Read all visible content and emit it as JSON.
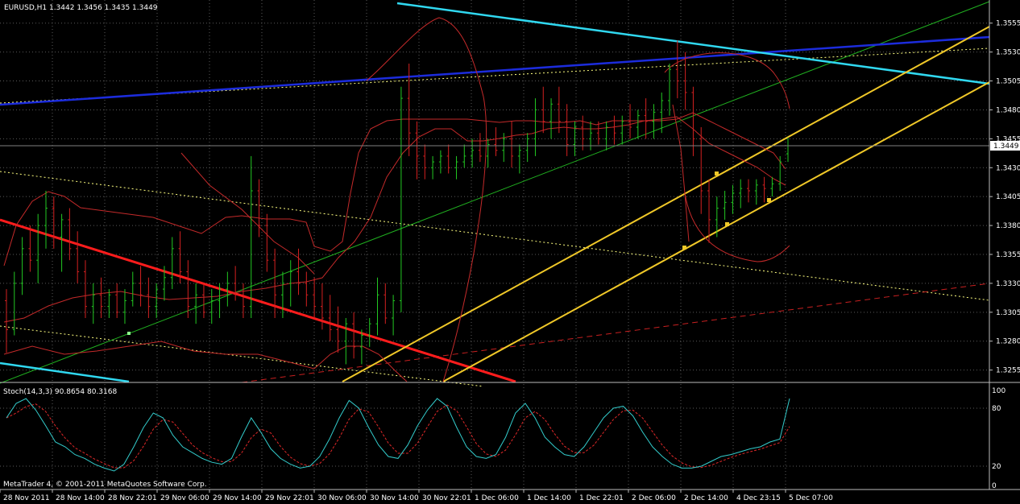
{
  "window": {
    "header": "EURUSD,H1  1.3442 1.3456 1.3435 1.3449",
    "copyright": "MetaTrader 4, © 2001-2011 MetaQuotes Software Corp."
  },
  "price_axis": {
    "labels": [
      "1.3555",
      "1.3530",
      "1.3505",
      "1.3480",
      "1.3455",
      "1.3430",
      "1.3405",
      "1.3380",
      "1.3355",
      "1.3330",
      "1.3305",
      "1.3280",
      "1.3255"
    ],
    "current_price": "1.3449"
  },
  "time_axis": {
    "labels": [
      "28 Nov 2011",
      "28 Nov 14:00",
      "28 Nov 22:01",
      "29 Nov 06:00",
      "29 Nov 14:00",
      "29 Nov 22:01",
      "30 Nov 06:00",
      "30 Nov 14:00",
      "30 Nov 22:01",
      "1 Dec 06:00",
      "1 Dec 14:00",
      "1 Dec 22:01",
      "2 Dec 06:00",
      "2 Dec 14:00",
      "4 Dec 23:15",
      "5 Dec 07:00"
    ]
  },
  "indicator": {
    "header": "Stoch(14,3,3) 90.8654 80.3168",
    "levels": [
      "100",
      "80",
      "20",
      "0"
    ]
  },
  "colors": {
    "background": "#000000",
    "bull_candle": "#22c822",
    "bear_candle": "#d42020",
    "grid": "#5a5a5a",
    "bands": "#c42a2a",
    "stoch_main": "#33cccc",
    "stoch_signal": "#e02828",
    "channel": "#f0c828",
    "trend_blue": "#1c2cdc",
    "trend_cyan": "#30d8f0",
    "trend_red": "#ff1c1c",
    "trend_green": "#20b020"
  },
  "chart_data": {
    "type": "candlestick",
    "symbol": "EURUSD",
    "timeframe": "H1",
    "ylim": [
      1.3245,
      1.3575
    ],
    "candles": [
      [
        1.3315,
        1.3325,
        1.327,
        1.329
      ],
      [
        1.329,
        1.334,
        1.3285,
        1.333
      ],
      [
        1.333,
        1.337,
        1.332,
        1.336
      ],
      [
        1.336,
        1.338,
        1.334,
        1.335
      ],
      [
        1.335,
        1.339,
        1.333,
        1.338
      ],
      [
        1.338,
        1.341,
        1.336,
        1.3395
      ],
      [
        1.3395,
        1.3405,
        1.336,
        1.337
      ],
      [
        1.337,
        1.339,
        1.334,
        1.3385
      ],
      [
        1.3385,
        1.3395,
        1.335,
        1.336
      ],
      [
        1.336,
        1.3375,
        1.333,
        1.334
      ],
      [
        1.334,
        1.335,
        1.33,
        1.331
      ],
      [
        1.331,
        1.333,
        1.3295,
        1.332
      ],
      [
        1.332,
        1.3335,
        1.33,
        1.331
      ],
      [
        1.331,
        1.3325,
        1.33,
        1.332
      ],
      [
        1.332,
        1.333,
        1.33,
        1.3305
      ],
      [
        1.3305,
        1.3325,
        1.3295,
        1.3315
      ],
      [
        1.3315,
        1.334,
        1.331,
        1.333
      ],
      [
        1.333,
        1.3345,
        1.331,
        1.332
      ],
      [
        1.332,
        1.3335,
        1.33,
        1.331
      ],
      [
        1.331,
        1.333,
        1.33,
        1.3325
      ],
      [
        1.3325,
        1.3345,
        1.3315,
        1.3335
      ],
      [
        1.3335,
        1.337,
        1.3325,
        1.336
      ],
      [
        1.336,
        1.3375,
        1.333,
        1.334
      ],
      [
        1.334,
        1.335,
        1.33,
        1.331
      ],
      [
        1.331,
        1.333,
        1.3295,
        1.332
      ],
      [
        1.332,
        1.333,
        1.33,
        1.3305
      ],
      [
        1.3305,
        1.3325,
        1.3295,
        1.3315
      ],
      [
        1.3315,
        1.333,
        1.33,
        1.3325
      ],
      [
        1.3325,
        1.334,
        1.331,
        1.333
      ],
      [
        1.333,
        1.3345,
        1.3315,
        1.332
      ],
      [
        1.332,
        1.333,
        1.33,
        1.331
      ],
      [
        1.331,
        1.344,
        1.33,
        1.341
      ],
      [
        1.341,
        1.342,
        1.337,
        1.338
      ],
      [
        1.338,
        1.339,
        1.334,
        1.335
      ],
      [
        1.335,
        1.336,
        1.33,
        1.332
      ],
      [
        1.332,
        1.334,
        1.33,
        1.333
      ],
      [
        1.333,
        1.335,
        1.331,
        1.334
      ],
      [
        1.334,
        1.336,
        1.332,
        1.333
      ],
      [
        1.333,
        1.334,
        1.331,
        1.332
      ],
      [
        1.332,
        1.3335,
        1.33,
        1.331
      ],
      [
        1.331,
        1.333,
        1.329,
        1.33
      ],
      [
        1.33,
        1.332,
        1.328,
        1.329
      ],
      [
        1.329,
        1.331,
        1.327,
        1.328
      ],
      [
        1.328,
        1.33,
        1.326,
        1.3295
      ],
      [
        1.3295,
        1.3305,
        1.3265,
        1.3275
      ],
      [
        1.3275,
        1.329,
        1.326,
        1.3285
      ],
      [
        1.3285,
        1.33,
        1.3275,
        1.3295
      ],
      [
        1.3295,
        1.3335,
        1.3285,
        1.332
      ],
      [
        1.332,
        1.333,
        1.3295,
        1.33
      ],
      [
        1.33,
        1.332,
        1.3285,
        1.3315
      ],
      [
        1.3315,
        1.35,
        1.3305,
        1.349
      ],
      [
        1.349,
        1.352,
        1.344,
        1.346
      ],
      [
        1.346,
        1.347,
        1.342,
        1.344
      ],
      [
        1.344,
        1.345,
        1.342,
        1.343
      ],
      [
        1.343,
        1.344,
        1.342,
        1.3435
      ],
      [
        1.3435,
        1.3445,
        1.3425,
        1.344
      ],
      [
        1.344,
        1.345,
        1.3425,
        1.343
      ],
      [
        1.343,
        1.344,
        1.342,
        1.3435
      ],
      [
        1.3435,
        1.345,
        1.343,
        1.344
      ],
      [
        1.344,
        1.3455,
        1.343,
        1.3445
      ],
      [
        1.3445,
        1.346,
        1.3435,
        1.344
      ],
      [
        1.344,
        1.3455,
        1.343,
        1.345
      ],
      [
        1.345,
        1.3465,
        1.344,
        1.3445
      ],
      [
        1.3445,
        1.346,
        1.3435,
        1.3455
      ],
      [
        1.3455,
        1.347,
        1.343,
        1.344
      ],
      [
        1.344,
        1.345,
        1.3425,
        1.3445
      ],
      [
        1.3445,
        1.346,
        1.3435,
        1.3455
      ],
      [
        1.3455,
        1.349,
        1.344,
        1.348
      ],
      [
        1.348,
        1.35,
        1.346,
        1.347
      ],
      [
        1.347,
        1.349,
        1.3455,
        1.3485
      ],
      [
        1.3485,
        1.35,
        1.346,
        1.347
      ],
      [
        1.347,
        1.3485,
        1.344,
        1.345
      ],
      [
        1.345,
        1.347,
        1.344,
        1.3465
      ],
      [
        1.3465,
        1.3475,
        1.3445,
        1.3455
      ],
      [
        1.3455,
        1.347,
        1.3445,
        1.346
      ],
      [
        1.346,
        1.347,
        1.345,
        1.3455
      ],
      [
        1.3455,
        1.347,
        1.3445,
        1.3465
      ],
      [
        1.3465,
        1.3475,
        1.345,
        1.346
      ],
      [
        1.346,
        1.3475,
        1.345,
        1.347
      ],
      [
        1.347,
        1.3485,
        1.3455,
        1.3465
      ],
      [
        1.3465,
        1.348,
        1.3455,
        1.3475
      ],
      [
        1.3475,
        1.349,
        1.3455,
        1.347
      ],
      [
        1.347,
        1.3485,
        1.3455,
        1.3478
      ],
      [
        1.3478,
        1.3495,
        1.346,
        1.3488
      ],
      [
        1.3488,
        1.352,
        1.3475,
        1.3515
      ],
      [
        1.3515,
        1.354,
        1.349,
        1.3505
      ],
      [
        1.3505,
        1.353,
        1.348,
        1.3495
      ],
      [
        1.3495,
        1.35,
        1.344,
        1.3455
      ],
      [
        1.3455,
        1.3465,
        1.339,
        1.341
      ],
      [
        1.341,
        1.342,
        1.3365,
        1.3385
      ],
      [
        1.3385,
        1.3405,
        1.337,
        1.3395
      ],
      [
        1.3395,
        1.341,
        1.3385,
        1.34
      ],
      [
        1.34,
        1.3415,
        1.339,
        1.3408
      ],
      [
        1.3408,
        1.342,
        1.3395,
        1.3412
      ],
      [
        1.3412,
        1.342,
        1.34,
        1.341
      ],
      [
        1.341,
        1.342,
        1.3398,
        1.3415
      ],
      [
        1.3415,
        1.3422,
        1.34,
        1.3412
      ],
      [
        1.3412,
        1.3422,
        1.3405,
        1.3416
      ],
      [
        1.3416,
        1.344,
        1.341,
        1.3435
      ],
      [
        1.3442,
        1.3456,
        1.3435,
        1.3449
      ]
    ],
    "stochastic": {
      "main": [
        70,
        85,
        90,
        78,
        62,
        45,
        40,
        32,
        28,
        22,
        18,
        15,
        22,
        40,
        60,
        75,
        70,
        52,
        40,
        34,
        28,
        24,
        22,
        28,
        50,
        70,
        55,
        38,
        28,
        22,
        18,
        20,
        30,
        48,
        70,
        88,
        80,
        60,
        42,
        30,
        28,
        42,
        62,
        78,
        90,
        82,
        60,
        40,
        30,
        28,
        32,
        50,
        75,
        85,
        70,
        50,
        40,
        32,
        30,
        40,
        55,
        70,
        80,
        82,
        72,
        55,
        40,
        30,
        22,
        18,
        18,
        20,
        25,
        30,
        32,
        35,
        38,
        40,
        45,
        48,
        90
      ]
    }
  }
}
